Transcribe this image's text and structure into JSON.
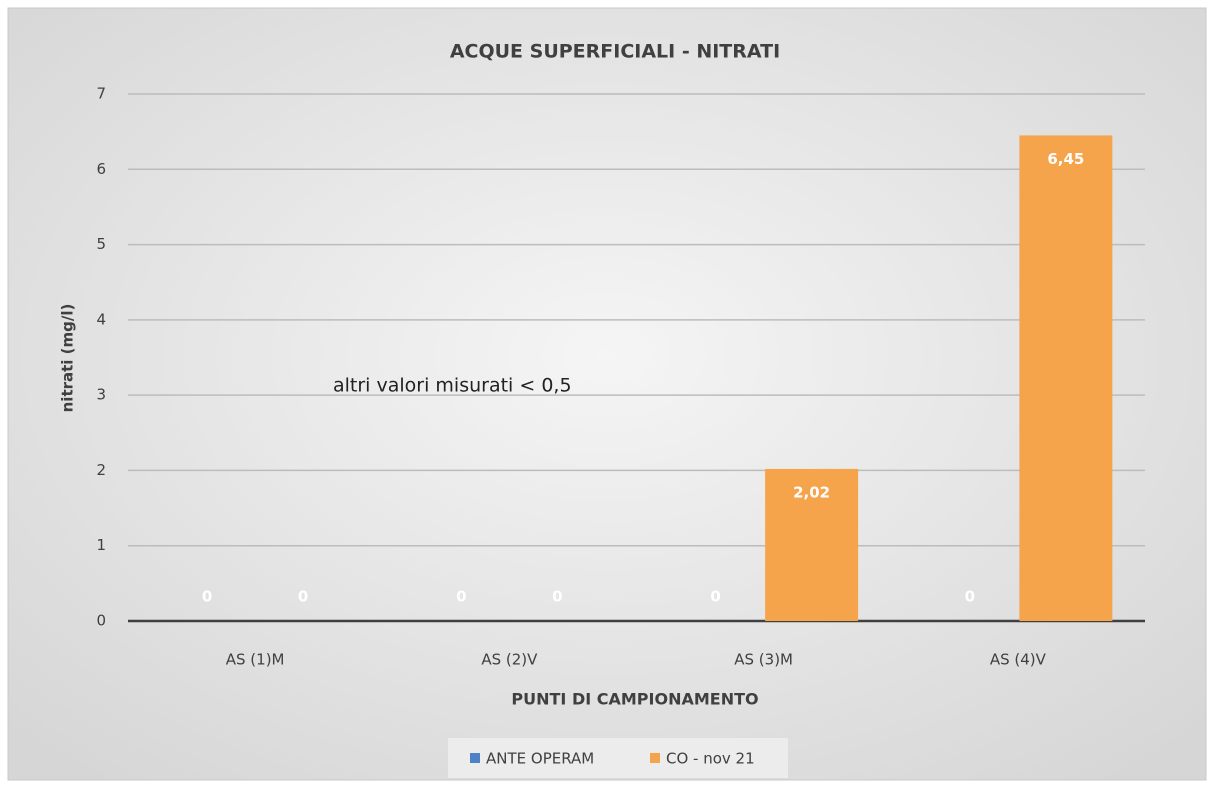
{
  "chart_data": {
    "type": "bar",
    "title": "ACQUE SUPERFICIALI - NITRATI",
    "y_label": "nitrati (mg/l)",
    "x_label": "PUNTI DI CAMPIONAMENTO",
    "annotation": "altri valori misurati  < 0,5",
    "categories": [
      "AS (1)M",
      "AS (2)V",
      "AS (3)M",
      "AS (4)V"
    ],
    "series": [
      {
        "name": "ANTE OPERAM",
        "color": "#4f81c7",
        "values": [
          0,
          0,
          0,
          0
        ],
        "value_labels": [
          "0",
          "0",
          "0",
          "0"
        ]
      },
      {
        "name": "CO - nov 21",
        "color": "#f6a44c",
        "values": [
          0,
          0,
          2.02,
          6.45
        ],
        "value_labels": [
          "0",
          "0",
          "2,02",
          "6,45"
        ]
      }
    ],
    "ylim": [
      0,
      7
    ],
    "yticks": [
      0,
      1,
      2,
      3,
      4,
      5,
      6,
      7
    ],
    "grid": true,
    "legend": "bottom"
  }
}
